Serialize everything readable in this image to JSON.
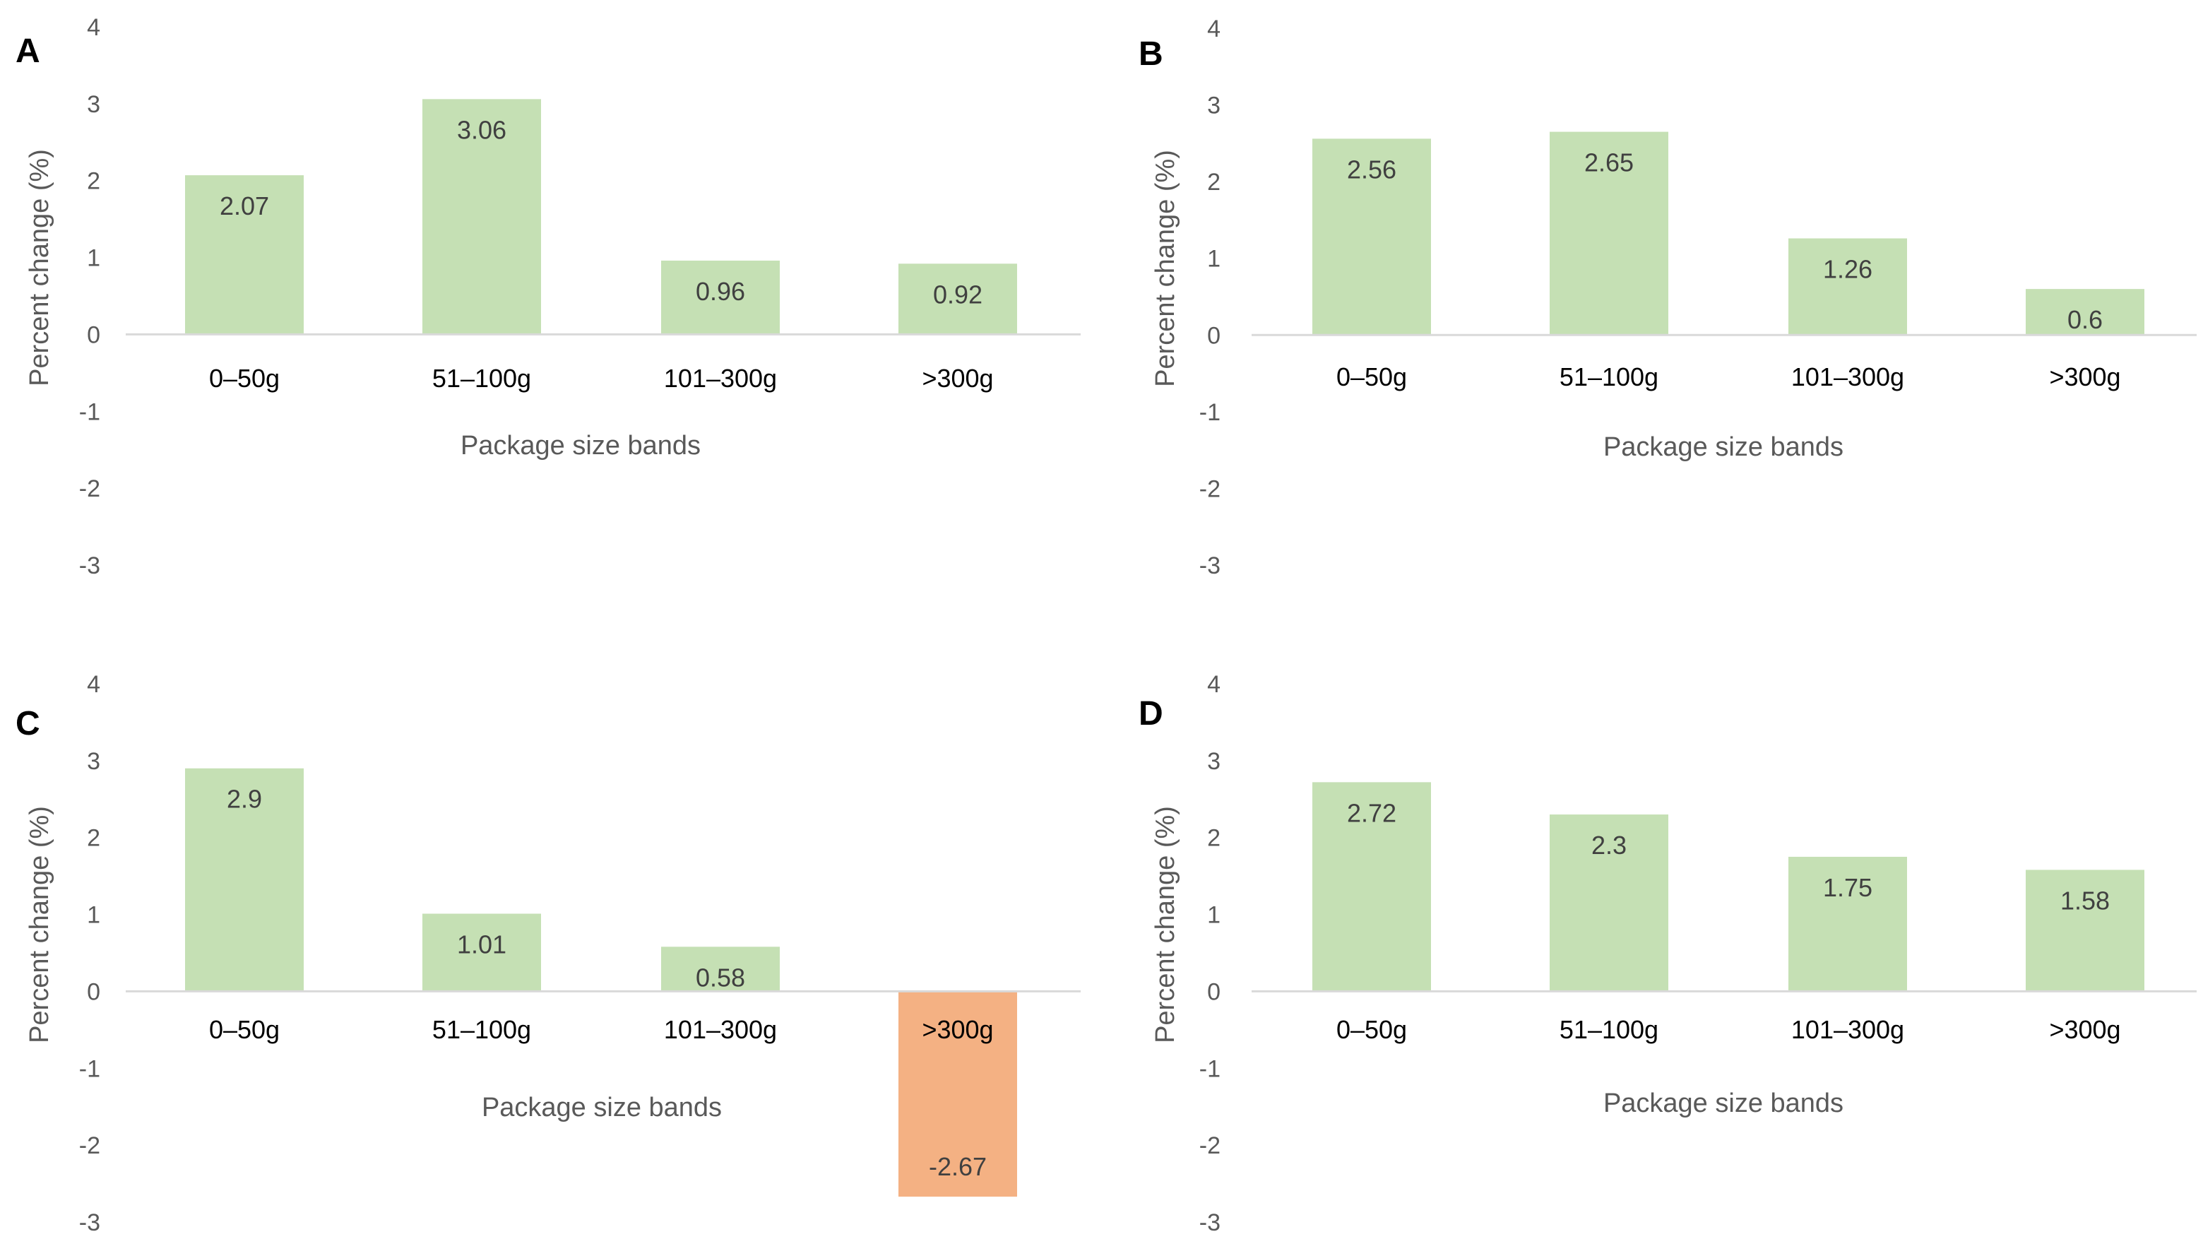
{
  "colors": {
    "positive": "#c5e0b4",
    "negative": "#f4b183",
    "axis": "#d9d9d9",
    "tick_text": "#595959",
    "category_text": "#000000",
    "data_label_text": "#404040"
  },
  "chart_data": [
    {
      "type": "bar",
      "panel": "A",
      "categories": [
        "0–50g",
        "51–100g",
        "101–300g",
        ">300g"
      ],
      "values": [
        2.07,
        3.06,
        0.96,
        0.92
      ],
      "data_labels": [
        "2.07",
        "3.06",
        "0.96",
        "0.92"
      ],
      "xlabel": "Package size bands",
      "ylabel": "Percent change (%)",
      "ylim": [
        -3,
        4
      ],
      "yticks": [
        "4",
        "3",
        "2",
        "1",
        "0",
        "-1",
        "-2",
        "-3"
      ],
      "grid": false,
      "legend": "none"
    },
    {
      "type": "bar",
      "panel": "B",
      "categories": [
        "0–50g",
        "51–100g",
        "101–300g",
        ">300g"
      ],
      "values": [
        2.56,
        2.65,
        1.26,
        0.6
      ],
      "data_labels": [
        "2.56",
        "2.65",
        "1.26",
        "0.6"
      ],
      "xlabel": "Package size bands",
      "ylabel": "Percent change (%)",
      "ylim": [
        -3,
        4
      ],
      "yticks": [
        "4",
        "3",
        "2",
        "1",
        "0",
        "-1",
        "-2",
        "-3"
      ],
      "grid": false,
      "legend": "none"
    },
    {
      "type": "bar",
      "panel": "C",
      "categories": [
        "0–50g",
        "51–100g",
        "101–300g",
        ">300g"
      ],
      "values": [
        2.9,
        1.01,
        0.58,
        -2.67
      ],
      "data_labels": [
        "2.9",
        "1.01",
        "0.58",
        "-2.67"
      ],
      "xlabel": "Package size bands",
      "ylabel": "Percent change (%)",
      "ylim": [
        -3,
        4
      ],
      "yticks": [
        "4",
        "3",
        "2",
        "1",
        "0",
        "-1",
        "-2",
        "-3"
      ],
      "grid": false,
      "legend": "none"
    },
    {
      "type": "bar",
      "panel": "D",
      "categories": [
        "0–50g",
        "51–100g",
        "101–300g",
        ">300g"
      ],
      "values": [
        2.72,
        2.3,
        1.75,
        1.58
      ],
      "data_labels": [
        "2.72",
        "2.3",
        "1.75",
        "1.58"
      ],
      "xlabel": "Package size bands",
      "ylabel": "Percent change (%)",
      "ylim": [
        -3,
        4
      ],
      "yticks": [
        "4",
        "3",
        "2",
        "1",
        "0",
        "-1",
        "-2",
        "-3"
      ],
      "grid": false,
      "legend": "none"
    }
  ]
}
